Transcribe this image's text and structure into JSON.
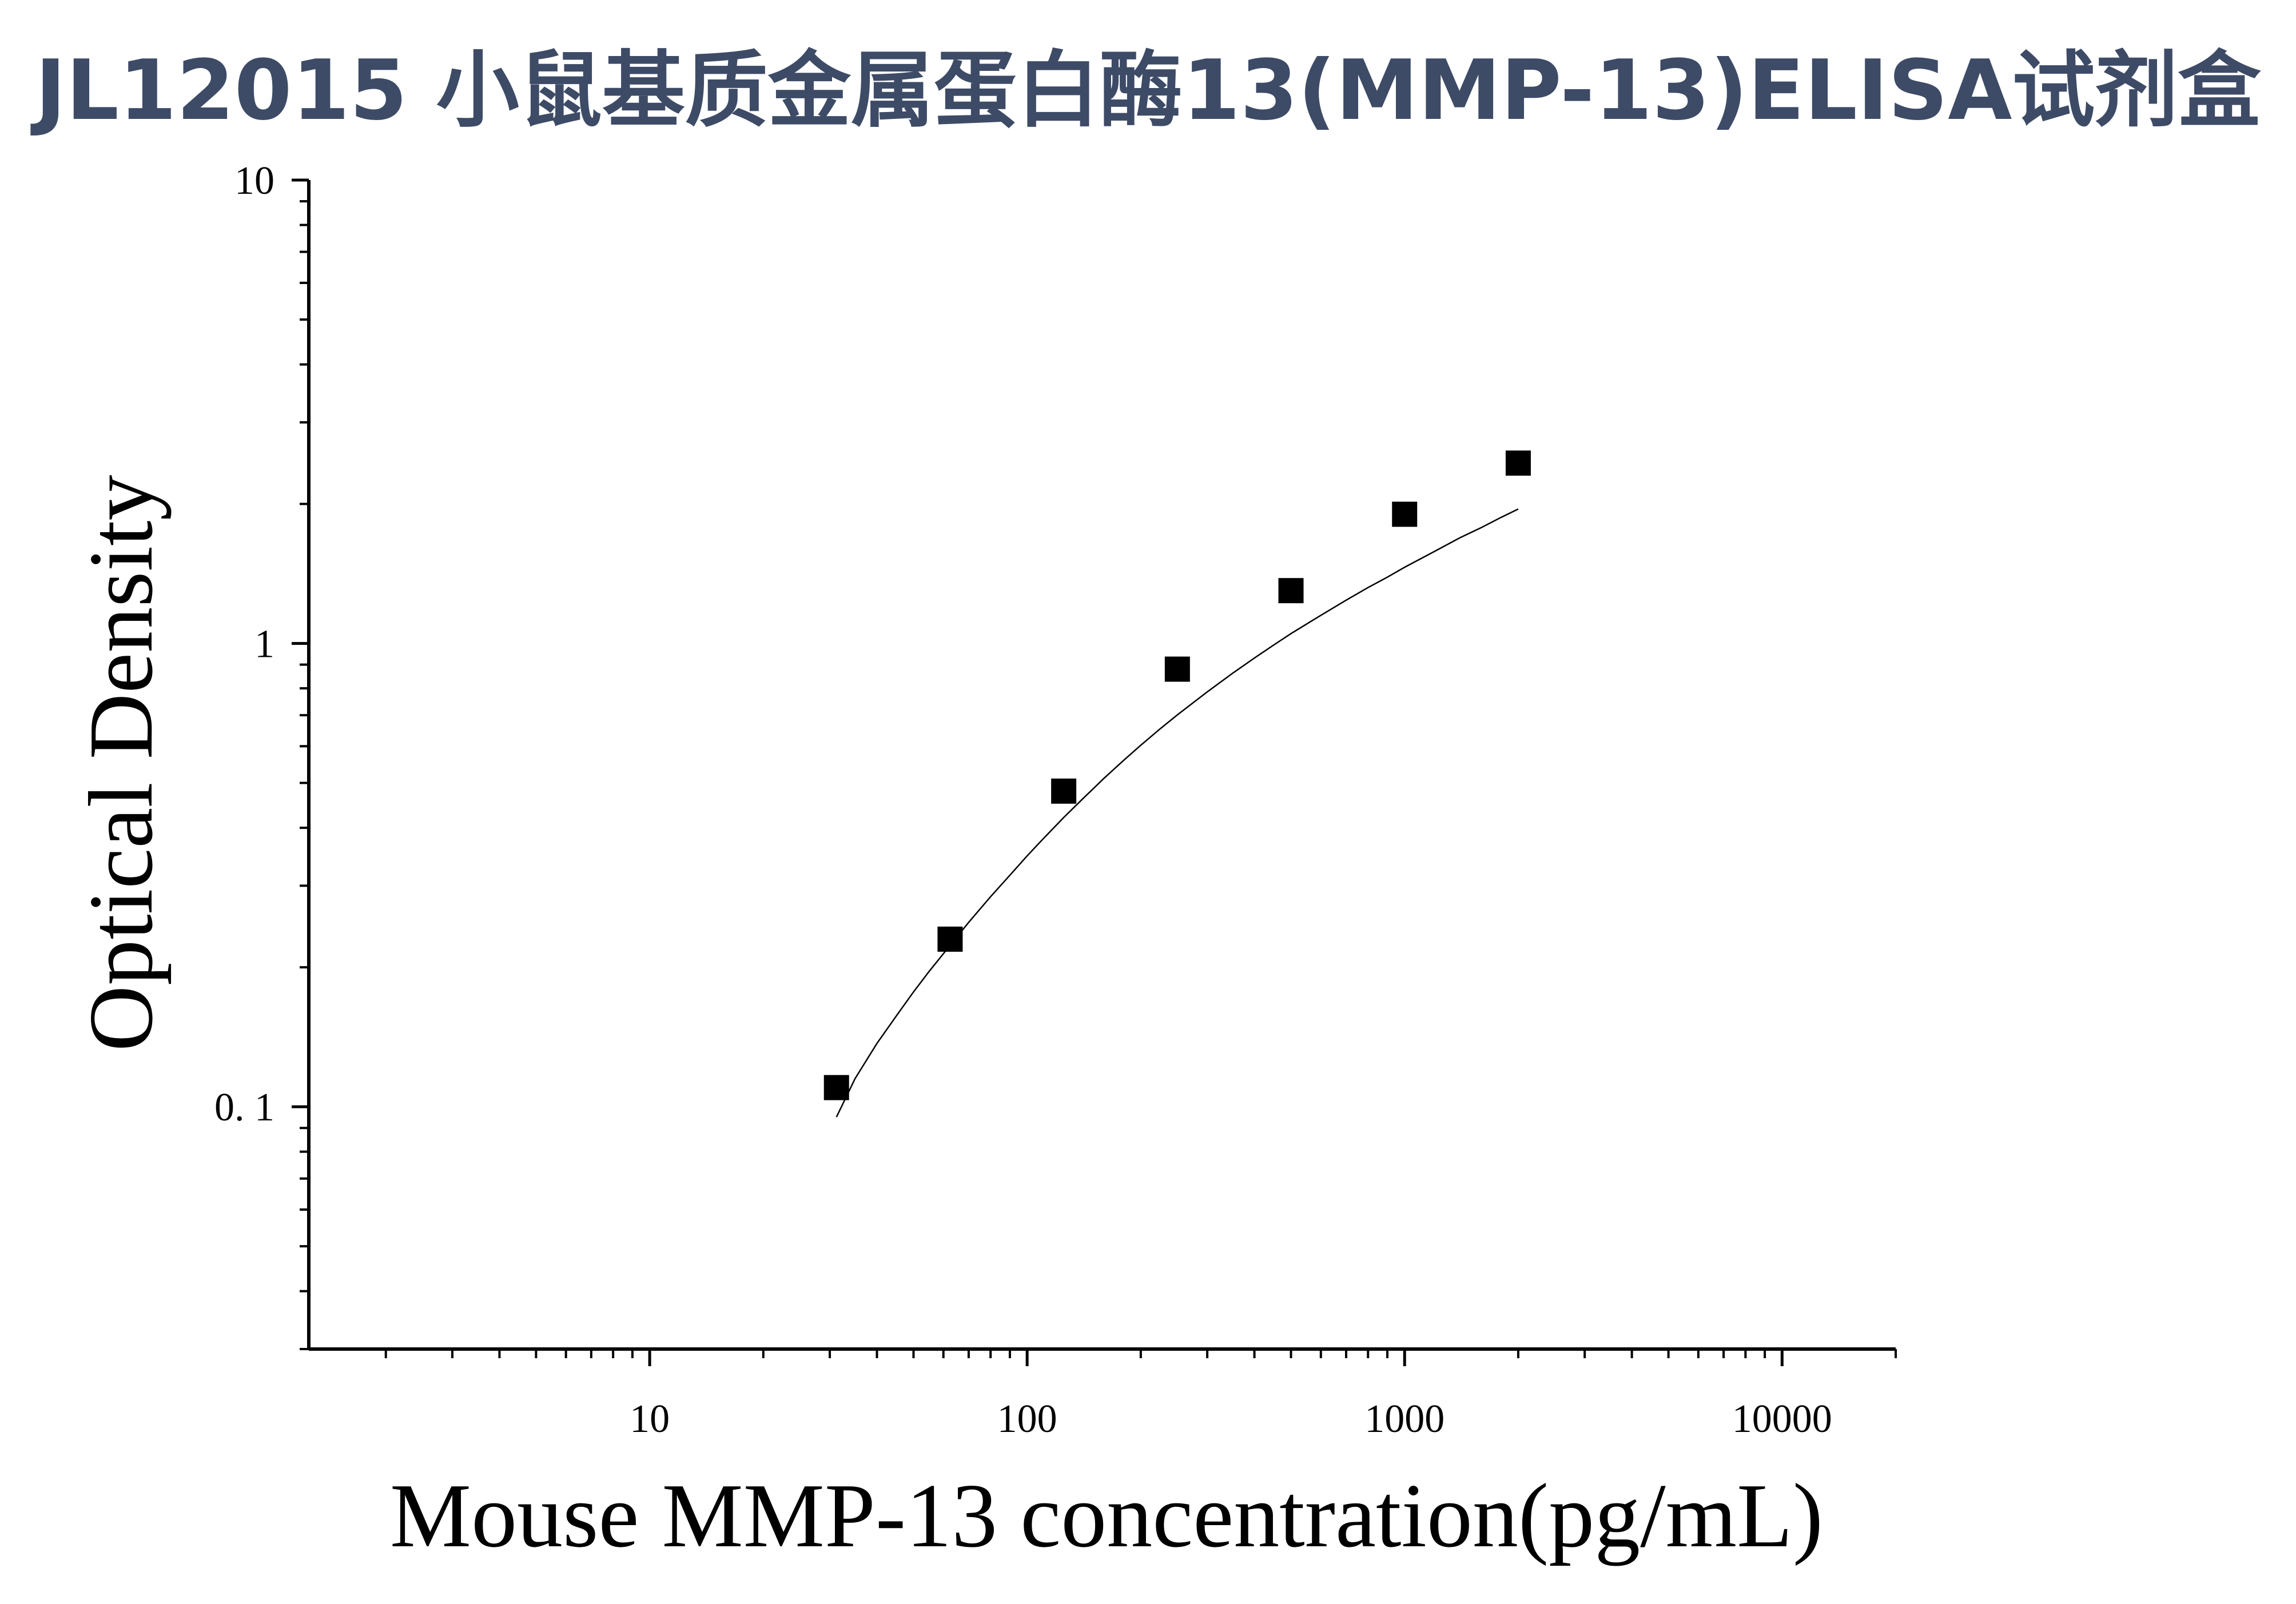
{
  "title": "JL12015 小鼠基质金属蛋白酶13(MMP-13)ELISA试剂盒",
  "chart_data": {
    "type": "scatter",
    "xlabel": "Mouse MMP-13 concentration(pg/mL)",
    "ylabel": "Optical Density",
    "xscale": "log",
    "yscale": "log",
    "xlim": [
      1.25,
      20000
    ],
    "ylim": [
      0.03,
      10
    ],
    "x_tick_labels": [
      "10",
      "100",
      "1000",
      "10000"
    ],
    "y_tick_labels": [
      "10",
      "1",
      "0. 1"
    ],
    "grid": false,
    "legend": "none",
    "series": [
      {
        "x": [
          31.25,
          62.5,
          125,
          250,
          500,
          1000,
          2000
        ],
        "y": [
          0.11,
          0.23,
          0.48,
          0.88,
          1.3,
          1.9,
          2.45
        ]
      }
    ],
    "fit_curve": {
      "type": "line",
      "x": [
        31.25,
        35,
        40,
        45,
        50,
        55,
        62.5,
        70,
        80,
        90,
        100,
        110,
        125,
        140,
        160,
        180,
        200,
        225,
        250,
        300,
        350,
        400,
        450,
        500,
        600,
        700,
        800,
        900,
        1000,
        1200,
        1400,
        1600,
        1800,
        2000
      ],
      "y": [
        0.095,
        0.115,
        0.137,
        0.157,
        0.177,
        0.196,
        0.223,
        0.25,
        0.284,
        0.316,
        0.348,
        0.378,
        0.421,
        0.461,
        0.512,
        0.559,
        0.603,
        0.654,
        0.701,
        0.786,
        0.862,
        0.93,
        0.992,
        1.05,
        1.15,
        1.24,
        1.32,
        1.39,
        1.46,
        1.58,
        1.69,
        1.78,
        1.87,
        1.95
      ]
    }
  }
}
